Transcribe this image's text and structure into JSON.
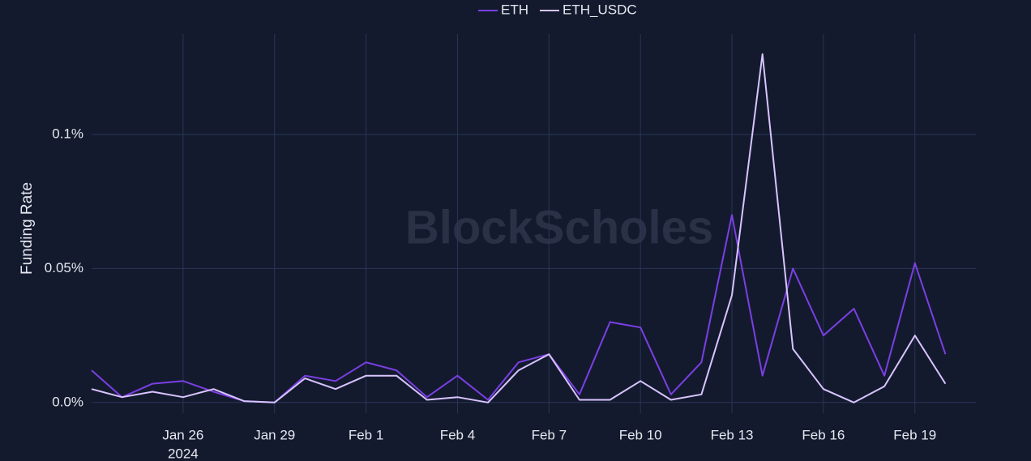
{
  "chart_data": {
    "type": "line",
    "y_label": "Funding Rate",
    "watermark": "BlockScholes",
    "x": [
      "2024-01-23",
      "2024-01-24",
      "2024-01-25",
      "2024-01-26",
      "2024-01-27",
      "2024-01-28",
      "2024-01-29",
      "2024-01-30",
      "2024-01-31",
      "2024-02-01",
      "2024-02-02",
      "2024-02-03",
      "2024-02-04",
      "2024-02-05",
      "2024-02-06",
      "2024-02-07",
      "2024-02-08",
      "2024-02-09",
      "2024-02-10",
      "2024-02-11",
      "2024-02-12",
      "2024-02-13",
      "2024-02-14",
      "2024-02-15",
      "2024-02-16",
      "2024-02-17",
      "2024-02-18",
      "2024-02-19",
      "2024-02-20"
    ],
    "series": [
      {
        "name": "ETH",
        "color": "#7b3fe4",
        "values": [
          0.012,
          0.002,
          0.007,
          0.008,
          0.004,
          0.0005,
          0.0,
          0.01,
          0.008,
          0.015,
          0.012,
          0.002,
          0.01,
          0.001,
          0.015,
          0.018,
          0.003,
          0.03,
          0.028,
          0.003,
          0.015,
          0.07,
          0.01,
          0.05,
          0.025,
          0.035,
          0.01,
          0.052,
          0.018
        ]
      },
      {
        "name": "ETH_USDC",
        "color": "#d9c4ff",
        "values": [
          0.005,
          0.002,
          0.004,
          0.002,
          0.005,
          0.0005,
          0.0,
          0.009,
          0.005,
          0.01,
          0.01,
          0.001,
          0.002,
          0.0,
          0.012,
          0.018,
          0.001,
          0.001,
          0.008,
          0.001,
          0.003,
          0.04,
          0.13,
          0.02,
          0.005,
          0.0,
          0.006,
          0.025,
          0.007
        ]
      }
    ],
    "xlim": [
      "2024-01-23",
      "2024-02-21"
    ],
    "xticks": [
      {
        "value": "2024-01-26",
        "label": "Jan 26"
      },
      {
        "value": "2024-01-29",
        "label": "Jan 29"
      },
      {
        "value": "2024-02-01",
        "label": "Feb 1"
      },
      {
        "value": "2024-02-04",
        "label": "Feb 4"
      },
      {
        "value": "2024-02-07",
        "label": "Feb 7"
      },
      {
        "value": "2024-02-10",
        "label": "Feb 10"
      },
      {
        "value": "2024-02-13",
        "label": "Feb 13"
      },
      {
        "value": "2024-02-16",
        "label": "Feb 16"
      },
      {
        "value": "2024-02-19",
        "label": "Feb 19"
      }
    ],
    "x_year_label": "2024",
    "ylim": [
      -0.004,
      0.1375
    ],
    "yticks": [
      {
        "value": 0,
        "label": "0.0%"
      },
      {
        "value": 0.05,
        "label": "0.05%"
      },
      {
        "value": 0.1,
        "label": "0.1%"
      }
    ],
    "grid": true,
    "legend": "top"
  }
}
